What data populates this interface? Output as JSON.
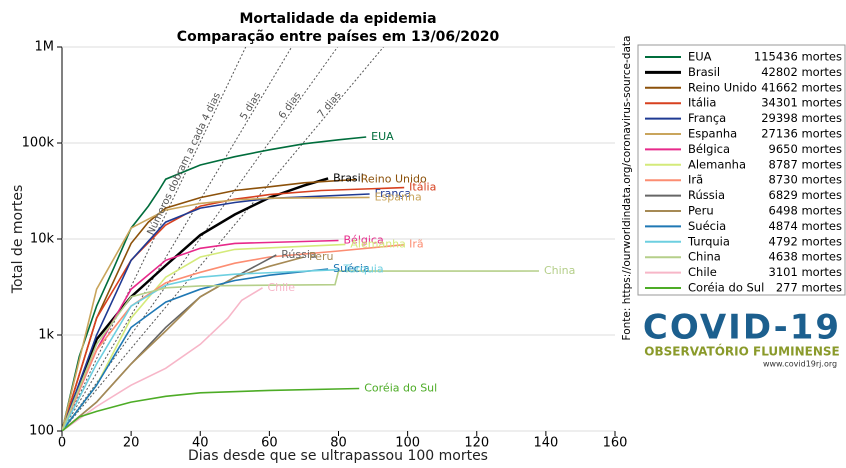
{
  "chart_data": {
    "type": "line",
    "title": "Mortalidade da epidemia",
    "subtitle": "Comparação entre países em 13/06/2020",
    "xlabel": "Dias desde que se ultrapassou 100 mortes",
    "ylabel": "Total de mortes",
    "source": "Fonte: https://ourworldindata.org/coronavirus-source-data",
    "xlim": [
      0,
      160
    ],
    "xticks": [
      0,
      20,
      40,
      60,
      80,
      100,
      120,
      140,
      160
    ],
    "ylim": [
      100,
      1000000
    ],
    "yscale": "log",
    "yticks": [
      100,
      {
        "value": 1000,
        "label": "1k"
      },
      {
        "value": 10000,
        "label": "10k"
      },
      {
        "value": 100000,
        "label": "100k"
      },
      {
        "value": 1000000,
        "label": "1M"
      }
    ],
    "grid": true,
    "legend": "outside-right",
    "doubling_lines": [
      {
        "days": 4,
        "label": "Números dobram a cada 4 dias"
      },
      {
        "days": 5,
        "label": "5 dias"
      },
      {
        "days": 6,
        "label": "6 dias"
      },
      {
        "days": 7,
        "label": "7 dias"
      }
    ],
    "series": [
      {
        "name": "EUA",
        "legend_label": "115436 mortes",
        "color": "#006d3c",
        "x": [
          0,
          5,
          10,
          15,
          20,
          25,
          28,
          30,
          40,
          50,
          60,
          70,
          80,
          88
        ],
        "values": [
          100,
          600,
          2000,
          5000,
          13000,
          22000,
          32000,
          42000,
          59000,
          72000,
          85000,
          98000,
          108000,
          115436
        ]
      },
      {
        "name": "Brasil",
        "legend_label": "42802 mortes",
        "color": "#000000",
        "x": [
          0,
          10,
          20,
          30,
          40,
          50,
          60,
          70,
          77
        ],
        "values": [
          100,
          900,
          2500,
          5300,
          11000,
          18000,
          27000,
          36000,
          42802
        ]
      },
      {
        "name": "Reino Unido",
        "legend_label": "41662 mortes",
        "color": "#8c510a",
        "x": [
          0,
          10,
          20,
          25,
          30,
          40,
          50,
          60,
          70,
          85
        ],
        "values": [
          100,
          1500,
          9000,
          15000,
          21000,
          27000,
          32000,
          35000,
          38500,
          41662
        ]
      },
      {
        "name": "Itália",
        "legend_label": "34301 mortes",
        "color": "#d7401f",
        "x": [
          0,
          10,
          20,
          30,
          40,
          50,
          60,
          75,
          99
        ],
        "values": [
          100,
          1500,
          6000,
          14000,
          22000,
          26000,
          29000,
          32000,
          34301
        ]
      },
      {
        "name": "França",
        "legend_label": "29398 mortes",
        "color": "#1f3a93",
        "x": [
          0,
          10,
          20,
          30,
          40,
          50,
          60,
          89
        ],
        "values": [
          100,
          1000,
          6000,
          15000,
          21000,
          24000,
          26500,
          29398
        ]
      },
      {
        "name": "Espanha",
        "legend_label": "27136 mortes",
        "color": "#c9a55c",
        "x": [
          0,
          10,
          20,
          30,
          40,
          50,
          60,
          89
        ],
        "values": [
          100,
          3000,
          13000,
          20000,
          23500,
          25500,
          26600,
          27136
        ]
      },
      {
        "name": "Bélgica",
        "legend_label": "9650 mortes",
        "color": "#e7298a",
        "x": [
          0,
          10,
          20,
          30,
          40,
          50,
          80
        ],
        "values": [
          100,
          700,
          3000,
          6000,
          8000,
          9000,
          9650
        ]
      },
      {
        "name": "Alemanha",
        "legend_label": "8787 mortes",
        "color": "#d4ea7a",
        "x": [
          0,
          10,
          20,
          30,
          40,
          50,
          82
        ],
        "values": [
          100,
          300,
          1500,
          4000,
          6500,
          7800,
          8787
        ]
      },
      {
        "name": "Irã",
        "legend_label": "8730 mortes",
        "color": "#fc8d72",
        "x": [
          0,
          10,
          20,
          30,
          40,
          50,
          60,
          80,
          99
        ],
        "values": [
          100,
          700,
          2000,
          3500,
          4500,
          5600,
          6500,
          7500,
          8730
        ]
      },
      {
        "name": "Rússia",
        "legend_label": "6829 mortes",
        "color": "#666666",
        "x": [
          0,
          10,
          20,
          30,
          40,
          50,
          62
        ],
        "values": [
          100,
          200,
          500,
          1200,
          2500,
          4000,
          6829
        ]
      },
      {
        "name": "Peru",
        "legend_label": "6498 mortes",
        "color": "#a68a55",
        "x": [
          0,
          10,
          20,
          30,
          40,
          50,
          60,
          70
        ],
        "values": [
          100,
          200,
          500,
          1100,
          2500,
          4000,
          5200,
          6498
        ]
      },
      {
        "name": "Suécia",
        "legend_label": "4874 mortes",
        "color": "#1f78b4",
        "x": [
          0,
          10,
          20,
          30,
          40,
          50,
          60,
          77
        ],
        "values": [
          100,
          300,
          1200,
          2200,
          3000,
          3700,
          4200,
          4874
        ]
      },
      {
        "name": "Turquia",
        "legend_label": "4792 mortes",
        "color": "#6dcfe0",
        "x": [
          0,
          10,
          20,
          30,
          40,
          50,
          80
        ],
        "values": [
          100,
          500,
          2000,
          3300,
          4000,
          4300,
          4792
        ]
      },
      {
        "name": "China",
        "legend_label": "4638 mortes",
        "color": "#b5cf8a",
        "x": [
          0,
          10,
          20,
          30,
          40,
          60,
          79,
          80,
          138
        ],
        "values": [
          100,
          800,
          2500,
          3100,
          3250,
          3300,
          3340,
          4632,
          4638
        ]
      },
      {
        "name": "Chile",
        "legend_label": "3101 mortes",
        "color": "#f7b6c8",
        "x": [
          0,
          10,
          20,
          30,
          40,
          48,
          52,
          58
        ],
        "values": [
          100,
          180,
          300,
          450,
          800,
          1500,
          2300,
          3101
        ]
      },
      {
        "name": "Coréia do Sul",
        "legend_label": "277 mortes",
        "color": "#4dac26",
        "x": [
          0,
          5,
          10,
          20,
          30,
          40,
          60,
          86
        ],
        "values": [
          100,
          140,
          160,
          200,
          230,
          250,
          265,
          277
        ]
      }
    ]
  },
  "logo": {
    "title": "COVID-19",
    "subtitle": "OBSERVATÓRIO FLUMINENSE",
    "url": "www.covid19rj.org"
  }
}
